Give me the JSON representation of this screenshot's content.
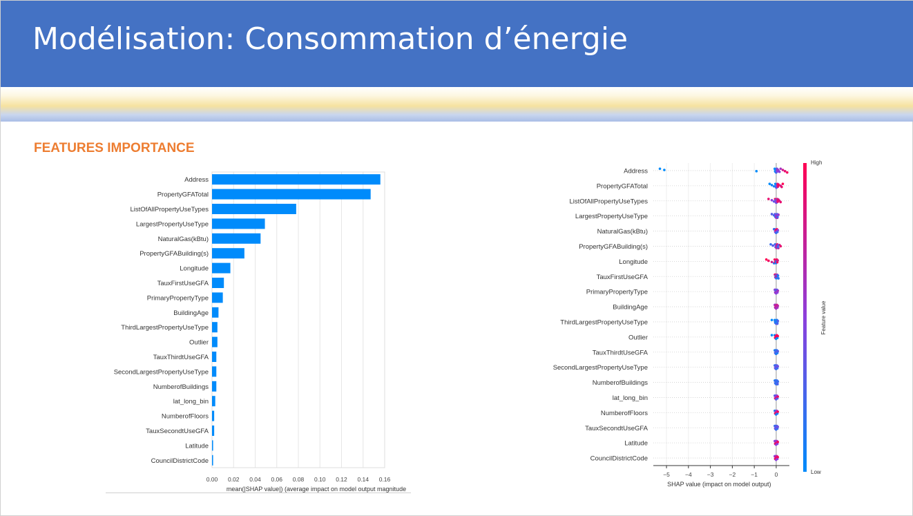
{
  "slide": {
    "title": "Modélisation: Consommation d’énergie",
    "section_title": "FEATURES IMPORTANCE"
  },
  "colors": {
    "header": "#4472c4",
    "section": "#ed7d31",
    "bar": "#008bfb",
    "shap_low": "#008bfb",
    "shap_high": "#ff0052"
  },
  "chart_data": [
    {
      "type": "bar",
      "orientation": "horizontal",
      "categories": [
        "Address",
        "PropertyGFATotal",
        "ListOfAllPropertyUseTypes",
        "LargestPropertyUseType",
        "NaturalGas(kBtu)",
        "PropertyGFABuilding(s)",
        "Longitude",
        "TauxFirstUseGFA",
        "PrimaryPropertyType",
        "BuildingAge",
        "ThirdLargestPropertyUseType",
        "Outlier",
        "TauxThirdtUseGFA",
        "SecondLargestPropertyUseType",
        "NumberofBuildings",
        "lat_long_bin",
        "NumberofFloors",
        "TauxSecondtUseGFA",
        "Latitude",
        "CouncilDistrictCode"
      ],
      "values": [
        0.156,
        0.147,
        0.078,
        0.049,
        0.045,
        0.03,
        0.017,
        0.011,
        0.01,
        0.006,
        0.005,
        0.005,
        0.004,
        0.004,
        0.004,
        0.003,
        0.002,
        0.002,
        0.001,
        0.001
      ],
      "xlabel": "mean(|SHAP value|) (average impact on model output magnitude",
      "xticks": [
        "0.00",
        "0.02",
        "0.04",
        "0.06",
        "0.08",
        "0.10",
        "0.12",
        "0.14",
        "0.16"
      ],
      "xlim": [
        0,
        0.16
      ],
      "grid": true
    },
    {
      "type": "scatter",
      "subtype": "beeswarm",
      "categories": [
        "Address",
        "PropertyGFATotal",
        "ListOfAllPropertyUseTypes",
        "LargestPropertyUseType",
        "NaturalGas(kBtu)",
        "PropertyGFABuilding(s)",
        "Longitude",
        "TauxFirstUseGFA",
        "PrimaryPropertyType",
        "BuildingAge",
        "ThirdLargestPropertyUseType",
        "Outlier",
        "TauxThirdtUseGFA",
        "SecondLargestPropertyUseType",
        "NumberofBuildings",
        "lat_long_bin",
        "NumberofFloors",
        "TauxSecondtUseGFA",
        "Latitude",
        "CouncilDistrictCode"
      ],
      "points": [
        {
          "x": [
            -5.3,
            -5.1,
            -0.9,
            0.0,
            0.05,
            0.1,
            0.15,
            0.2,
            0.3,
            0.4,
            0.5,
            -0.05,
            0.02
          ],
          "c": [
            0.0,
            0.0,
            0.0,
            0.2,
            0.3,
            0.4,
            0.5,
            0.6,
            0.8,
            0.9,
            0.95,
            0.1,
            0.3
          ]
        },
        {
          "x": [
            -0.3,
            -0.2,
            -0.1,
            0.0,
            0.1,
            0.2,
            0.25,
            0.3
          ],
          "c": [
            0.0,
            0.05,
            0.1,
            0.4,
            0.6,
            0.8,
            0.9,
            1.0
          ]
        },
        {
          "x": [
            -0.35,
            -0.2,
            -0.1,
            0.0,
            0.1,
            0.15,
            0.2
          ],
          "c": [
            0.9,
            0.5,
            0.3,
            0.4,
            0.6,
            0.8,
            0.9
          ]
        },
        {
          "x": [
            -0.2,
            -0.1,
            0.0,
            0.05,
            0.1
          ],
          "c": [
            0.3,
            0.2,
            0.5,
            0.6,
            0.7
          ]
        },
        {
          "x": [
            -0.1,
            0.0,
            0.05
          ],
          "c": [
            0.2,
            0.5,
            1.0
          ]
        },
        {
          "x": [
            -0.25,
            -0.15,
            0.0,
            0.1,
            0.15,
            0.2
          ],
          "c": [
            0.2,
            0.3,
            0.5,
            0.7,
            0.8,
            0.9
          ]
        },
        {
          "x": [
            -0.45,
            -0.35,
            -0.2,
            -0.1,
            0.0
          ],
          "c": [
            1.0,
            0.95,
            0.8,
            0.1,
            0.05
          ]
        },
        {
          "x": [
            -0.05,
            0.0,
            0.05,
            0.1
          ],
          "c": [
            0.9,
            0.6,
            0.2,
            0.1
          ]
        },
        {
          "x": [
            -0.05,
            0.0,
            0.05
          ],
          "c": [
            0.5,
            0.6,
            0.3
          ]
        },
        {
          "x": [
            -0.05,
            0.0,
            0.05
          ],
          "c": [
            0.6,
            0.7,
            0.8
          ]
        },
        {
          "x": [
            -0.2,
            -0.05,
            0.0,
            0.05
          ],
          "c": [
            0.0,
            0.1,
            0.2,
            0.3
          ]
        },
        {
          "x": [
            -0.2,
            0.0,
            0.02
          ],
          "c": [
            0.0,
            1.0,
            0.95
          ]
        },
        {
          "x": [
            -0.03,
            0.0,
            0.03
          ],
          "c": [
            0.1,
            0.3,
            0.2
          ]
        },
        {
          "x": [
            -0.03,
            0.0,
            0.03
          ],
          "c": [
            0.2,
            0.4,
            0.3
          ]
        },
        {
          "x": [
            -0.03,
            0.0,
            0.03,
            0.06
          ],
          "c": [
            0.1,
            0.2,
            0.3,
            0.2
          ]
        },
        {
          "x": [
            -0.03,
            0.0,
            0.03
          ],
          "c": [
            0.3,
            0.9,
            0.5
          ]
        },
        {
          "x": [
            -0.06,
            0.0,
            0.03
          ],
          "c": [
            0.1,
            0.95,
            0.6
          ]
        },
        {
          "x": [
            -0.03,
            0.0,
            0.03
          ],
          "c": [
            0.2,
            0.4,
            0.3
          ]
        },
        {
          "x": [
            -0.03,
            0.0,
            0.03
          ],
          "c": [
            0.5,
            0.95,
            0.6
          ]
        },
        {
          "x": [
            -0.03,
            0.0,
            0.03
          ],
          "c": [
            0.5,
            0.95,
            0.8
          ]
        }
      ],
      "xlabel": "SHAP value (impact on model output)",
      "xticks": [
        "−5",
        "−4",
        "−3",
        "−2",
        "−1",
        "0"
      ],
      "xlim": [
        -5.6,
        0.6
      ],
      "colorbar": {
        "label": "Feature value",
        "high": "High",
        "low": "Low"
      },
      "grid": true
    }
  ]
}
